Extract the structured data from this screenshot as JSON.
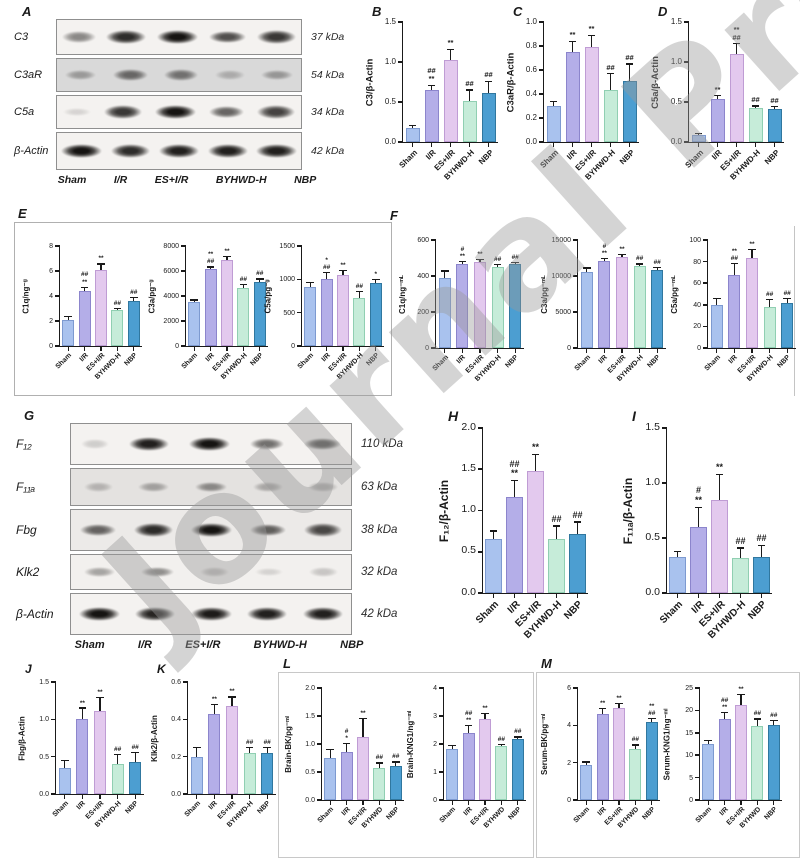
{
  "watermark": "Journal Pre",
  "colors": {
    "bars": [
      "#a9c2ee",
      "#b4aee8",
      "#e3c9ee",
      "#c6ecd9",
      "#4c9ed1"
    ],
    "bar_borders": [
      "#7d9ad0",
      "#8c85cc",
      "#bf9cd4",
      "#90cfb2",
      "#30779f"
    ],
    "axis": "#1a1a1a"
  },
  "panels": {
    "e_label": "E",
    "f_label": "F",
    "l_label": "L",
    "m_label": "M"
  },
  "blots": [
    {
      "id": "A",
      "letter": "A",
      "lanes": [
        "Sham",
        "I/R",
        "ES+I/R",
        "BYHWD-H",
        "NBP"
      ],
      "rows": [
        {
          "protein": "C3",
          "kda": "37 kDa",
          "bg": "#f4f2f0",
          "bands": [
            0.45,
            0.85,
            0.95,
            0.7,
            0.8
          ]
        },
        {
          "protein": "C3aR",
          "kda": "54 kDa",
          "bg": "#d9d9d9",
          "bands": [
            0.3,
            0.55,
            0.5,
            0.22,
            0.32
          ]
        },
        {
          "protein": "C5a",
          "kda": "34 kDa",
          "bg": "#f4f2f0",
          "bands": [
            0.12,
            0.8,
            0.95,
            0.6,
            0.75
          ]
        },
        {
          "protein": "β-Actin",
          "kda": "42 kDa",
          "bg": "#f4f2f0",
          "bands": [
            0.95,
            0.85,
            0.9,
            0.9,
            0.9
          ]
        }
      ]
    },
    {
      "id": "G",
      "letter": "G",
      "lanes": [
        "Sham",
        "I/R",
        "ES+I/R",
        "BYHWD-H",
        "NBP"
      ],
      "rows": [
        {
          "protein": "F₁₂",
          "kda": "110 kDa",
          "bg": "#f4f2f0",
          "bands": [
            0.15,
            0.9,
            0.95,
            0.55,
            0.7
          ]
        },
        {
          "protein": "F₁₁ₐ",
          "kda": "63 kDa",
          "bg": "#e4e2e0",
          "bands": [
            0.22,
            0.3,
            0.42,
            0.28,
            0.25
          ]
        },
        {
          "protein": "Fbg",
          "kda": "38 kDa",
          "bg": "#ecEAe8",
          "bands": [
            0.6,
            0.85,
            0.95,
            0.62,
            0.72
          ]
        },
        {
          "protein": "Klk2",
          "kda": "32 kDa",
          "bg": "#f2f0ee",
          "bands": [
            0.32,
            0.42,
            0.22,
            0.12,
            0.18
          ]
        },
        {
          "protein": "β-Actin",
          "kda": "42 kDa",
          "bg": "#f4f2f0",
          "bands": [
            0.95,
            0.88,
            0.92,
            0.9,
            0.9
          ]
        }
      ]
    }
  ],
  "chart_data": [
    {
      "id": "B",
      "panel": "B",
      "type": "bar",
      "ylabel": "C3/β-Actin",
      "ylim": [
        0,
        1.5
      ],
      "yticks": [
        "0.0",
        "0.5",
        "1.0",
        "1.5"
      ],
      "categories": [
        "Sham",
        "I/R",
        "ES+I/R",
        "BYHWD-H",
        "NBP"
      ],
      "values": [
        0.18,
        0.65,
        1.03,
        0.51,
        0.61
      ],
      "errors": [
        0.03,
        0.06,
        0.13,
        0.14,
        0.15
      ],
      "annotations": [
        "",
        "##\n**",
        "**",
        "##",
        "##"
      ]
    },
    {
      "id": "C",
      "panel": "C",
      "type": "bar",
      "ylabel": "C3aR/β-Actin",
      "ylim": [
        0,
        1.0
      ],
      "yticks": [
        "0.0",
        "0.2",
        "0.4",
        "0.6",
        "0.8",
        "1.0"
      ],
      "categories": [
        "Sham",
        "I/R",
        "ES+I/R",
        "BYHWD-H",
        "NBP"
      ],
      "values": [
        0.3,
        0.75,
        0.79,
        0.43,
        0.51
      ],
      "errors": [
        0.04,
        0.09,
        0.1,
        0.14,
        0.14
      ],
      "annotations": [
        "",
        "**",
        "**",
        "##",
        "##"
      ]
    },
    {
      "id": "D",
      "panel": "D",
      "type": "bar",
      "ylabel": "C5a/β-Actin",
      "ylim": [
        0,
        1.5
      ],
      "yticks": [
        "0.0",
        "0.5",
        "1.0",
        "1.5"
      ],
      "categories": [
        "Sham",
        "I/R",
        "ES+I/R",
        "BYHWD-H",
        "NBP"
      ],
      "values": [
        0.09,
        0.54,
        1.1,
        0.42,
        0.41
      ],
      "errors": [
        0.02,
        0.04,
        0.13,
        0.03,
        0.03
      ],
      "annotations": [
        "",
        "**",
        "**\n##",
        "##",
        "##"
      ]
    },
    {
      "id": "E1",
      "panel": "",
      "type": "bar",
      "ylabel": "C1q/ng⁻ᵍ",
      "ylim": [
        0,
        8
      ],
      "yticks": [
        "0",
        "2",
        "4",
        "6",
        "8"
      ],
      "categories": [
        "Sham",
        "I/R",
        "ES+I/R",
        "BYHWD-H",
        "NBP"
      ],
      "values": [
        2.1,
        4.4,
        6.1,
        2.9,
        3.6
      ],
      "errors": [
        0.25,
        0.3,
        0.45,
        0.1,
        0.25
      ],
      "annotations": [
        "",
        "##\n**",
        "**",
        "##",
        "##"
      ]
    },
    {
      "id": "E2",
      "panel": "",
      "type": "bar",
      "ylabel": "C3a/pg⁻ᵍ",
      "ylim": [
        0,
        8000
      ],
      "yticks": [
        "0",
        "2000",
        "4000",
        "6000",
        "8000"
      ],
      "categories": [
        "Sham",
        "I/R",
        "ES+I/R",
        "BYHWD-H",
        "NBP"
      ],
      "values": [
        3500,
        6200,
        6850,
        4650,
        5150
      ],
      "errors": [
        180,
        120,
        300,
        250,
        200
      ],
      "annotations": [
        "",
        "**\n##",
        "**",
        "##",
        "##"
      ]
    },
    {
      "id": "E3",
      "panel": "",
      "type": "bar",
      "ylabel": "C5a/pg⁻ᵍ",
      "ylim": [
        0,
        1500
      ],
      "yticks": [
        "0",
        "500",
        "1000",
        "1500"
      ],
      "categories": [
        "Sham",
        "I/R",
        "ES+I/R",
        "BYHWD-H",
        "NBP"
      ],
      "values": [
        890,
        1010,
        1070,
        720,
        950
      ],
      "errors": [
        60,
        90,
        60,
        100,
        50
      ],
      "annotations": [
        "",
        "*\n##",
        "**",
        "##",
        "*"
      ]
    },
    {
      "id": "F1",
      "panel": "",
      "type": "bar",
      "ylabel": "C1q/ng⁻ᵐᴸ",
      "ylim": [
        0,
        600
      ],
      "yticks": [
        "0",
        "200",
        "400",
        "600"
      ],
      "categories": [
        "Sham",
        "I/R",
        "ES+I/R",
        "BYHWD-H",
        "NBP"
      ],
      "values": [
        390,
        468,
        480,
        452,
        465
      ],
      "errors": [
        38,
        12,
        10,
        10,
        10
      ],
      "annotations": [
        "",
        "#\n**",
        "**",
        "##",
        "##"
      ]
    },
    {
      "id": "F2",
      "panel": "",
      "type": "bar",
      "ylabel": "C3a/pg⁻ᵐᴸ",
      "ylim": [
        0,
        15000
      ],
      "yticks": [
        "0",
        "5000",
        "10000",
        "15000"
      ],
      "categories": [
        "Sham",
        "I/R",
        "ES+I/R",
        "BYHWD-H",
        "NBP"
      ],
      "values": [
        10600,
        12100,
        12600,
        11400,
        10900
      ],
      "errors": [
        500,
        300,
        350,
        250,
        300
      ],
      "annotations": [
        "",
        "#\n**",
        "**",
        "##",
        "##"
      ]
    },
    {
      "id": "F3",
      "panel": "",
      "type": "bar",
      "ylabel": "C5a/pg⁻ᵐᴸ",
      "ylim": [
        0,
        100
      ],
      "yticks": [
        "0",
        "20",
        "40",
        "60",
        "80",
        "100"
      ],
      "categories": [
        "Sham",
        "I/R",
        "ES+I/R",
        "BYHWD-H",
        "NBP"
      ],
      "values": [
        40,
        68,
        83,
        38,
        42
      ],
      "errors": [
        6,
        10,
        8,
        7,
        4
      ],
      "annotations": [
        "",
        "**\n##",
        "**",
        "##",
        "##"
      ]
    },
    {
      "id": "H",
      "panel": "H",
      "type": "bar",
      "ylabel": "F₁₂/β-Actin",
      "ylim": [
        0,
        2.0
      ],
      "yticks": [
        "0.0",
        "0.5",
        "1.0",
        "1.5",
        "2.0"
      ],
      "categories": [
        "Sham",
        "I/R",
        "ES+I/R",
        "BYHWD-H",
        "NBP"
      ],
      "values": [
        0.65,
        1.16,
        1.48,
        0.66,
        0.72
      ],
      "errors": [
        0.1,
        0.2,
        0.2,
        0.15,
        0.14
      ],
      "annotations": [
        "",
        "##\n**",
        "**",
        "##",
        "##"
      ]
    },
    {
      "id": "I",
      "panel": "I",
      "type": "bar",
      "ylabel": "F₁₁ₐ/β-Actin",
      "ylim": [
        0,
        1.5
      ],
      "yticks": [
        "0.0",
        "0.5",
        "1.0",
        "1.5"
      ],
      "categories": [
        "Sham",
        "I/R",
        "ES+I/R",
        "BYHWD-H",
        "NBP"
      ],
      "values": [
        0.33,
        0.6,
        0.85,
        0.32,
        0.33
      ],
      "errors": [
        0.05,
        0.18,
        0.23,
        0.09,
        0.1
      ],
      "annotations": [
        "",
        "#\n**",
        "**",
        "##",
        "##"
      ]
    },
    {
      "id": "J",
      "panel": "J",
      "type": "bar",
      "ylabel": "Fbg/β-Actin",
      "ylim": [
        0,
        1.5
      ],
      "yticks": [
        "0.0",
        "0.5",
        "1.0",
        "1.5"
      ],
      "categories": [
        "Sham",
        "I/R",
        "ES+I/R",
        "BYHWD-H",
        "NBP"
      ],
      "values": [
        0.35,
        1.0,
        1.11,
        0.4,
        0.43
      ],
      "errors": [
        0.1,
        0.15,
        0.18,
        0.13,
        0.13
      ],
      "annotations": [
        "",
        "**",
        "**",
        "##",
        "##"
      ]
    },
    {
      "id": "K",
      "panel": "K",
      "type": "bar",
      "ylabel": "Klk2/β-Actin",
      "ylim": [
        0,
        0.6
      ],
      "yticks": [
        "0.0",
        "0.2",
        "0.4",
        "0.6"
      ],
      "categories": [
        "Sham",
        "I/R",
        "ES+I/R",
        "BYHWD-H",
        "NBP"
      ],
      "values": [
        0.2,
        0.43,
        0.47,
        0.22,
        0.22
      ],
      "errors": [
        0.05,
        0.05,
        0.05,
        0.03,
        0.03
      ],
      "annotations": [
        "",
        "**",
        "**",
        "##",
        "##"
      ]
    },
    {
      "id": "L1",
      "panel": "",
      "type": "bar",
      "ylabel": "Brain-BK/pg⁻ᵐˡ",
      "ylim": [
        0,
        2.0
      ],
      "yticks": [
        "0.0",
        "0.5",
        "1.0",
        "1.5",
        "2.0"
      ],
      "categories": [
        "Sham",
        "I/R",
        "ES+I/R",
        "BYHWD",
        "NBP"
      ],
      "values": [
        0.75,
        0.86,
        1.12,
        0.58,
        0.61
      ],
      "errors": [
        0.15,
        0.15,
        0.33,
        0.08,
        0.07
      ],
      "annotations": [
        "",
        "#\n*",
        "**",
        "##",
        "##"
      ]
    },
    {
      "id": "L2",
      "panel": "",
      "type": "bar",
      "ylabel": "Brain-KNG1/ng⁻ᵐˡ",
      "ylim": [
        0,
        4
      ],
      "yticks": [
        "0",
        "1",
        "2",
        "3",
        "4"
      ],
      "categories": [
        "Sham",
        "I/R",
        "ES+I/R",
        "BYHWD",
        "NBP"
      ],
      "values": [
        1.82,
        2.4,
        2.9,
        1.93,
        2.17
      ],
      "errors": [
        0.12,
        0.25,
        0.2,
        0.06,
        0.08
      ],
      "annotations": [
        "",
        "##\n**",
        "**",
        "##",
        "##"
      ]
    },
    {
      "id": "M1",
      "panel": "",
      "type": "bar",
      "ylabel": "Serum-BK/pg⁻ᵐˡ",
      "ylim": [
        0,
        6
      ],
      "yticks": [
        "0",
        "2",
        "4",
        "6"
      ],
      "categories": [
        "Sham",
        "I/R",
        "ES+I/R",
        "BYHWD",
        "NBP"
      ],
      "values": [
        1.85,
        4.6,
        4.95,
        2.75,
        4.2
      ],
      "errors": [
        0.18,
        0.3,
        0.2,
        0.2,
        0.15
      ],
      "annotations": [
        "",
        "**",
        "**",
        "##",
        "**\n##"
      ]
    },
    {
      "id": "M2",
      "panel": "",
      "type": "bar",
      "ylabel": "Serum-KNG1/ng⁻ᵐˡ",
      "ylim": [
        0,
        25
      ],
      "yticks": [
        "0",
        "5",
        "10",
        "15",
        "20",
        "25"
      ],
      "categories": [
        "Sham",
        "I/R",
        "ES+I/R",
        "BYHWD",
        "NBP"
      ],
      "values": [
        12.6,
        18.0,
        21.2,
        16.6,
        16.8
      ],
      "errors": [
        0.7,
        1.5,
        2.3,
        1.5,
        1.0
      ],
      "annotations": [
        "",
        "##\n**",
        "**",
        "##",
        "##"
      ]
    }
  ]
}
